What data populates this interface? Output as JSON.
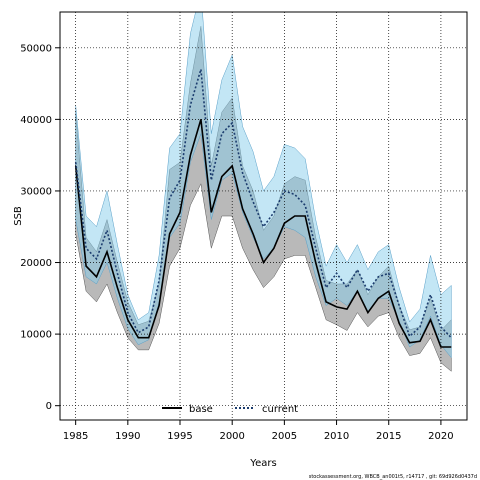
{
  "chart_data": {
    "type": "line",
    "xlabel": "Years",
    "ylabel": "SSB",
    "xlim": [
      1983.5,
      2022.5
    ],
    "ylim": [
      -2000,
      55000
    ],
    "x_ticks": [
      1985,
      1990,
      1995,
      2000,
      2005,
      2010,
      2015,
      2020
    ],
    "y_ticks": [
      0,
      10000,
      20000,
      30000,
      40000,
      50000
    ],
    "grid": "dotted",
    "legend_position": "bottom-center",
    "x": [
      1985,
      1986,
      1987,
      1988,
      1989,
      1990,
      1991,
      1992,
      1993,
      1994,
      1995,
      1996,
      1997,
      1998,
      1999,
      2000,
      2001,
      2002,
      2003,
      2004,
      2005,
      2006,
      2007,
      2008,
      2009,
      2010,
      2011,
      2012,
      2013,
      2014,
      2015,
      2016,
      2017,
      2018,
      2019,
      2020,
      2021
    ],
    "series": [
      {
        "name": "base",
        "color": "#000000",
        "line_style": "solid",
        "band_color": "#808080",
        "values": [
          33500,
          19500,
          18000,
          21500,
          16500,
          12000,
          9500,
          9500,
          14000,
          24000,
          27000,
          35000,
          40000,
          27000,
          32000,
          33500,
          27500,
          24000,
          20000,
          22000,
          25500,
          26500,
          26500,
          20000,
          14500,
          13800,
          13500,
          16000,
          13000,
          15000,
          16000,
          11500,
          8800,
          9000,
          12000,
          8200,
          8200
        ],
        "lower": [
          24000,
          16000,
          14500,
          17000,
          13000,
          9500,
          7800,
          7800,
          11500,
          19500,
          22000,
          28000,
          31000,
          22000,
          26500,
          26500,
          22000,
          19000,
          16500,
          18000,
          20500,
          21000,
          21000,
          16500,
          12000,
          11300,
          10500,
          13000,
          11000,
          12500,
          13000,
          9500,
          7000,
          7300,
          9500,
          6000,
          4800
        ],
        "upper": [
          41000,
          23500,
          21500,
          26000,
          20000,
          14500,
          11300,
          11800,
          17000,
          33000,
          34000,
          45000,
          53000,
          33500,
          41000,
          43000,
          33500,
          30000,
          24500,
          26500,
          31000,
          32000,
          31500,
          23500,
          17500,
          17000,
          17000,
          19000,
          15500,
          18000,
          19500,
          14000,
          10600,
          11000,
          15000,
          10500,
          12000
        ]
      },
      {
        "name": "current",
        "color": "#1b3c6e",
        "line_style": "dotted",
        "band_color": "#87ceeb",
        "values": [
          34000,
          22000,
          20500,
          24500,
          18500,
          13000,
          10200,
          11000,
          17500,
          29000,
          31500,
          42000,
          47000,
          31500,
          38000,
          39500,
          32500,
          28500,
          25000,
          27000,
          30000,
          29500,
          28000,
          22000,
          16500,
          18500,
          16500,
          19000,
          16000,
          18000,
          18500,
          14000,
          9700,
          11000,
          15500,
          11000,
          9500
        ],
        "lower": [
          26000,
          18000,
          17000,
          20000,
          15000,
          10800,
          8500,
          9200,
          14500,
          23500,
          25500,
          34000,
          38000,
          26000,
          31500,
          32500,
          27000,
          23500,
          20500,
          22000,
          25000,
          24500,
          23500,
          18000,
          14000,
          15000,
          14000,
          16000,
          13000,
          15000,
          15000,
          11800,
          8200,
          9200,
          12500,
          8500,
          6700
        ],
        "upper": [
          42000,
          26500,
          25000,
          30000,
          22500,
          15500,
          12000,
          13000,
          21000,
          36000,
          38000,
          52000,
          58000,
          38000,
          45500,
          49000,
          39000,
          35500,
          30000,
          32000,
          36500,
          36000,
          34500,
          26000,
          19500,
          22500,
          20000,
          22500,
          19000,
          21500,
          22500,
          16500,
          11700,
          13500,
          21000,
          15500,
          16800
        ]
      }
    ],
    "footer_text": "stockassessment.org, WBCB_an001t5, r14717 , git: 69d926d0437d"
  }
}
